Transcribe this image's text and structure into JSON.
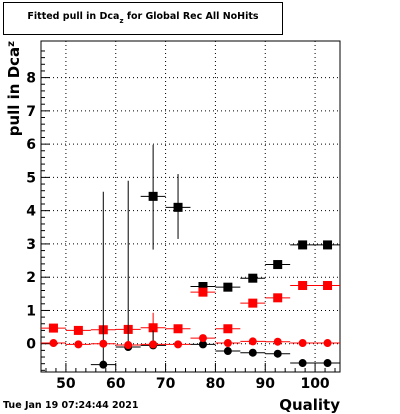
{
  "title": {
    "main": "Fitted pull in Dca",
    "subscript": "z",
    "suffix": " for Global Rec All NoHits"
  },
  "timestamp": "Tue Jan 19 07:24:44 2021",
  "chart_data": {
    "type": "scatter",
    "xlabel": "Quality",
    "ylabel": "pull in Dca",
    "ylabel_subscript": "z",
    "xlim": [
      45,
      105
    ],
    "ylim": [
      -0.85,
      9.1
    ],
    "xticks": [
      50,
      60,
      70,
      80,
      90,
      100
    ],
    "yticks": [
      0,
      1,
      2,
      3,
      4,
      5,
      6,
      7,
      8
    ],
    "grid": true,
    "series": [
      {
        "marker": "square",
        "color": "#000000",
        "points": [
          {
            "x": 67.5,
            "y": 4.43,
            "yerr": [
              1.6,
              1.55
            ],
            "xerr": 2.5
          },
          {
            "x": 72.5,
            "y": 4.1,
            "yerr": [
              0.95,
              1.0
            ],
            "xerr": 2.5
          },
          {
            "x": 77.5,
            "y": 1.72,
            "yerr": [
              0.1,
              0.1
            ],
            "xerr": 2.5
          },
          {
            "x": 82.5,
            "y": 1.7,
            "yerr": [
              0.08,
              0.08
            ],
            "xerr": 2.5
          },
          {
            "x": 87.5,
            "y": 1.97,
            "yerr": [
              0.07,
              0.07
            ],
            "xerr": 2.5
          },
          {
            "x": 92.5,
            "y": 2.38,
            "yerr": [
              0.07,
              0.07
            ],
            "xerr": 2.5
          },
          {
            "x": 97.5,
            "y": 2.97,
            "yerr": [
              0.07,
              0.07
            ],
            "xerr": 2.5
          },
          {
            "x": 102.5,
            "y": 2.97,
            "yerr": [
              0.07,
              0.07
            ],
            "xerr": 2.5
          }
        ]
      },
      {
        "marker": "square",
        "color": "#ff0000",
        "points": [
          {
            "x": 47.5,
            "y": 0.47,
            "yerr": [
              0.05,
              0.05
            ],
            "xerr": 2.5
          },
          {
            "x": 52.5,
            "y": 0.4,
            "yerr": [
              0.05,
              0.05
            ],
            "xerr": 2.5
          },
          {
            "x": 57.5,
            "y": 0.42,
            "yerr": [
              0.05,
              0.05
            ],
            "xerr": 2.5
          },
          {
            "x": 62.5,
            "y": 0.43,
            "yerr": [
              0.05,
              0.05
            ],
            "xerr": 2.5
          },
          {
            "x": 67.5,
            "y": 0.48,
            "yerr": [
              0.45,
              0.45
            ],
            "xerr": 2.5
          },
          {
            "x": 72.5,
            "y": 0.45,
            "yerr": [
              0.05,
              0.05
            ],
            "xerr": 2.5
          },
          {
            "x": 77.5,
            "y": 1.55,
            "yerr": [
              0.05,
              0.05
            ],
            "xerr": 2.5
          },
          {
            "x": 82.5,
            "y": 0.45,
            "yerr": [
              0.05,
              0.05
            ],
            "xerr": 2.5
          },
          {
            "x": 87.5,
            "y": 1.22,
            "yerr": [
              0.05,
              0.05
            ],
            "xerr": 2.5
          },
          {
            "x": 92.5,
            "y": 1.38,
            "yerr": [
              0.05,
              0.05
            ],
            "xerr": 2.5
          },
          {
            "x": 97.5,
            "y": 1.75,
            "yerr": [
              0.05,
              0.05
            ],
            "xerr": 2.5
          },
          {
            "x": 102.5,
            "y": 1.75,
            "yerr": [
              0.05,
              0.05
            ],
            "xerr": 2.5
          }
        ]
      },
      {
        "marker": "circle",
        "color": "#000000",
        "points": [
          {
            "x": 57.5,
            "y": -0.63,
            "yerr": [
              0.05,
              5.2
            ],
            "xerr": 2.5
          },
          {
            "x": 62.5,
            "y": -0.1,
            "yerr": [
              0.05,
              5.0
            ],
            "xerr": 2.5
          },
          {
            "x": 67.5,
            "y": -0.05,
            "yerr": [
              0.05,
              0.45
            ],
            "xerr": 2.5
          },
          {
            "x": 77.5,
            "y": -0.02,
            "yerr": [
              0.05,
              0.05
            ],
            "xerr": 2.5
          },
          {
            "x": 82.5,
            "y": -0.22,
            "yerr": [
              0.05,
              0.05
            ],
            "xerr": 2.5
          },
          {
            "x": 87.5,
            "y": -0.27,
            "yerr": [
              0.05,
              0.05
            ],
            "xerr": 2.5
          },
          {
            "x": 92.5,
            "y": -0.3,
            "yerr": [
              0.05,
              0.05
            ],
            "xerr": 2.5
          },
          {
            "x": 97.5,
            "y": -0.58,
            "yerr": [
              0.05,
              0.05
            ],
            "xerr": 2.5
          },
          {
            "x": 102.5,
            "y": -0.58,
            "yerr": [
              0.05,
              0.05
            ],
            "xerr": 2.5
          }
        ]
      },
      {
        "marker": "circle",
        "color": "#ff0000",
        "points": [
          {
            "x": 47.5,
            "y": 0.02,
            "yerr": [
              0.03,
              0.03
            ],
            "xerr": 2.5
          },
          {
            "x": 52.5,
            "y": -0.02,
            "yerr": [
              0.03,
              0.03
            ],
            "xerr": 2.5
          },
          {
            "x": 57.5,
            "y": 0.0,
            "yerr": [
              0.03,
              0.03
            ],
            "xerr": 2.5
          },
          {
            "x": 62.5,
            "y": -0.04,
            "yerr": [
              0.03,
              0.03
            ],
            "xerr": 2.5
          },
          {
            "x": 67.5,
            "y": -0.02,
            "yerr": [
              0.03,
              0.03
            ],
            "xerr": 2.5
          },
          {
            "x": 72.5,
            "y": -0.02,
            "yerr": [
              0.03,
              0.03
            ],
            "xerr": 2.5
          },
          {
            "x": 77.5,
            "y": 0.17,
            "yerr": [
              0.03,
              0.03
            ],
            "xerr": 2.5
          },
          {
            "x": 82.5,
            "y": 0.02,
            "yerr": [
              0.03,
              0.03
            ],
            "xerr": 2.5
          },
          {
            "x": 87.5,
            "y": 0.07,
            "yerr": [
              0.03,
              0.03
            ],
            "xerr": 2.5
          },
          {
            "x": 92.5,
            "y": 0.06,
            "yerr": [
              0.03,
              0.03
            ],
            "xerr": 2.5
          },
          {
            "x": 97.5,
            "y": 0.02,
            "yerr": [
              0.03,
              0.03
            ],
            "xerr": 2.5
          },
          {
            "x": 102.5,
            "y": 0.02,
            "yerr": [
              0.03,
              0.03
            ],
            "xerr": 2.5
          }
        ]
      }
    ]
  }
}
